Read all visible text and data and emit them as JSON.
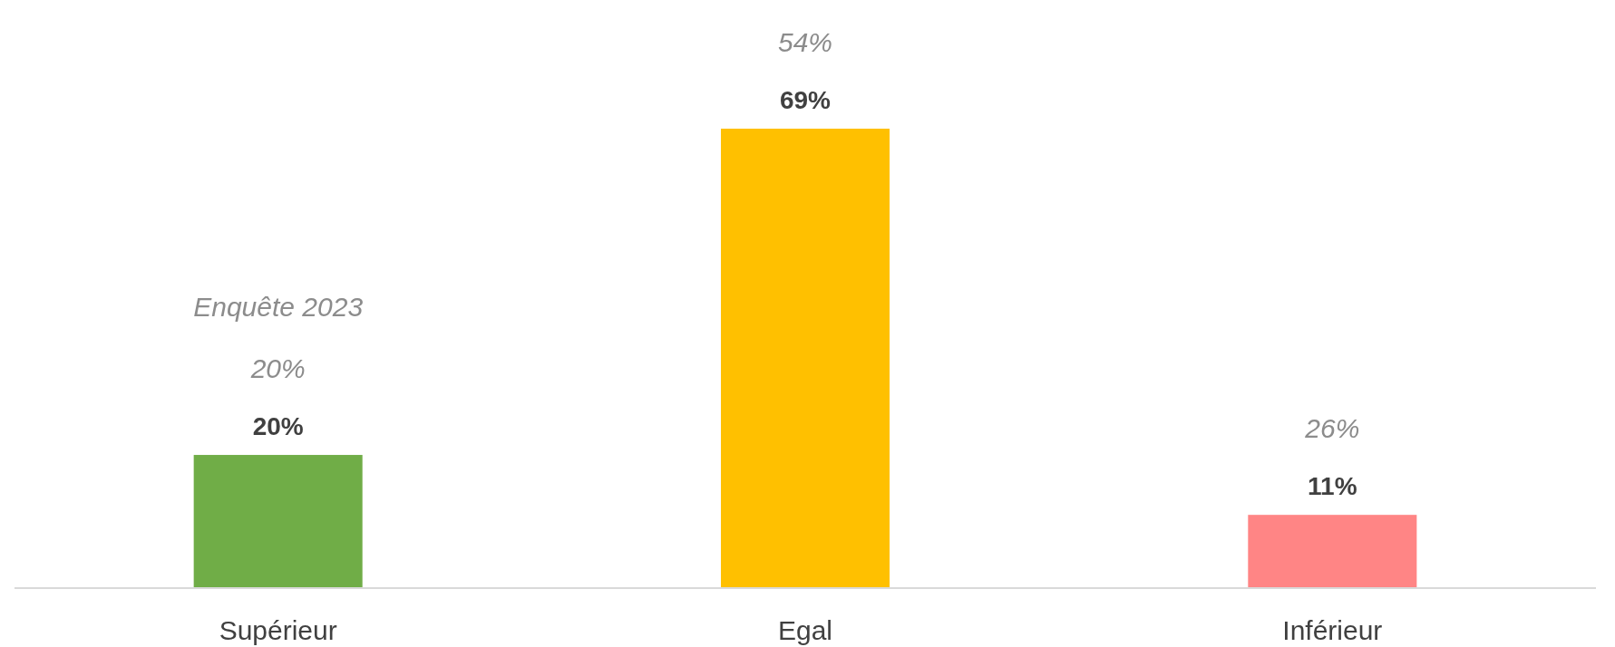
{
  "chart_data": {
    "type": "bar",
    "categories": [
      "Supérieur",
      "Egal",
      "Inférieur"
    ],
    "values": [
      20,
      69,
      11
    ],
    "colors": [
      "#70ad47",
      "#ffc000",
      "#ff8585"
    ],
    "data_labels": true,
    "value_labels": [
      "20%",
      "69%",
      "11%"
    ],
    "annotations": [
      "20%",
      "Enquête 2023",
      "54%",
      "26%"
    ]
  }
}
